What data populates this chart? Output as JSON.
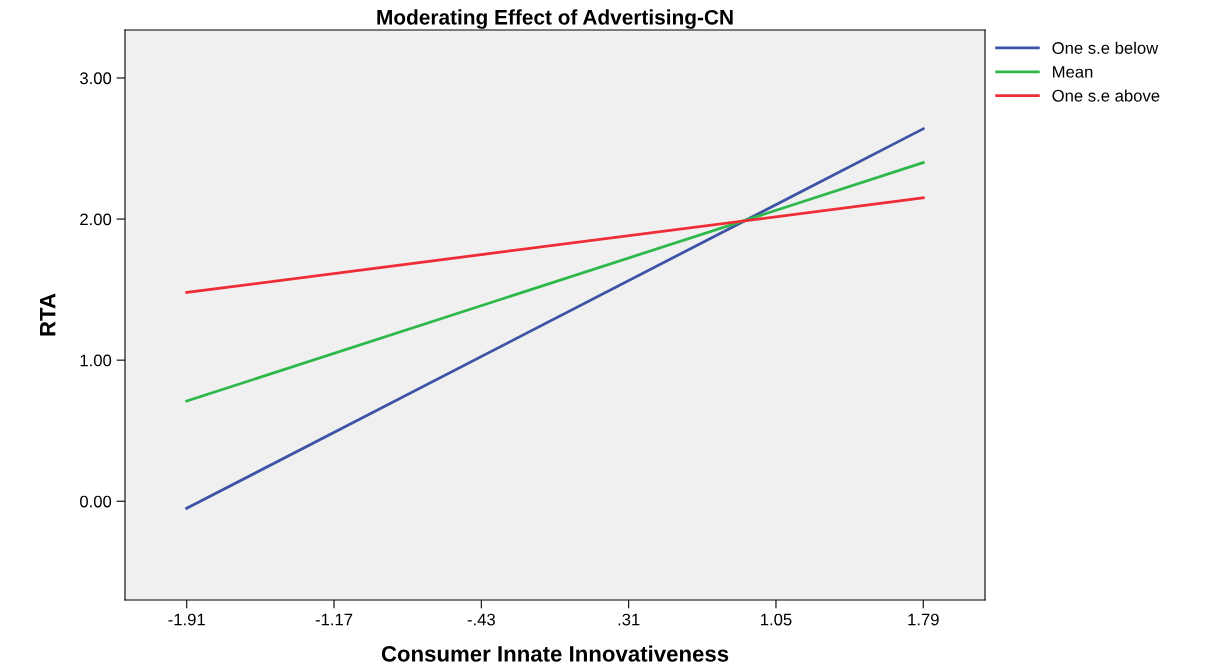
{
  "chart_data": {
    "type": "line",
    "title": "Moderating Effect of Advertising-CN",
    "xlabel": "Consumer Innate Innovativeness",
    "ylabel": "RTA",
    "x": [
      -1.91,
      1.79
    ],
    "series": [
      {
        "name": "One s.e below",
        "color": "#3d53a5",
        "values": [
          -0.05,
          2.64
        ]
      },
      {
        "name": "Mean",
        "color": "#2db84a",
        "values": [
          0.71,
          2.4
        ]
      },
      {
        "name": "One s.e above",
        "color": "#ef2d36",
        "values": [
          1.48,
          2.15
        ]
      }
    ],
    "xlim": [
      -2.22,
      2.1
    ],
    "ylim": [
      -0.7,
      3.34
    ],
    "xticks": [
      {
        "value": -1.91,
        "label": "-1.91"
      },
      {
        "value": -1.17,
        "label": "-1.17"
      },
      {
        "value": -0.43,
        "label": "-.43"
      },
      {
        "value": 0.31,
        "label": ".31"
      },
      {
        "value": 1.05,
        "label": "1.05"
      },
      {
        "value": 1.79,
        "label": "1.79"
      }
    ],
    "yticks": [
      {
        "value": 0,
        "label": "0.00"
      },
      {
        "value": 1,
        "label": "1.00"
      },
      {
        "value": 2,
        "label": "2.00"
      },
      {
        "value": 3,
        "label": "3.00"
      }
    ],
    "grid": false,
    "legend": "top right",
    "marker": "none",
    "line_style": "solid"
  }
}
